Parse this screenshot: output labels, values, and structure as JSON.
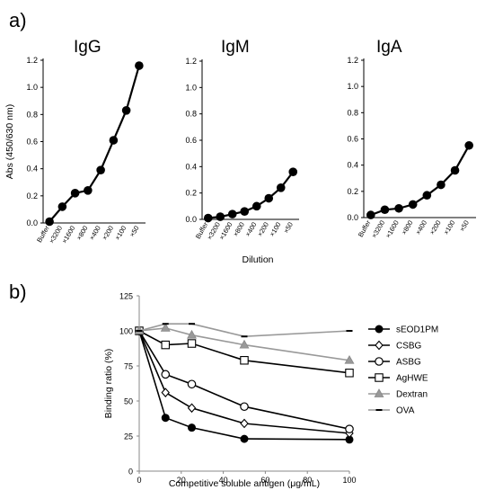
{
  "panel_labels": {
    "a": "a)",
    "b": "b)"
  },
  "chart_data": [
    {
      "type": "line",
      "title": "IgG",
      "categories": [
        "Buffer",
        "×3200",
        "×1600",
        "×800",
        "×400",
        "×200",
        "×100",
        "×50"
      ],
      "values": [
        0.01,
        0.12,
        0.22,
        0.24,
        0.39,
        0.61,
        0.83,
        1.16
      ],
      "ylim": [
        0,
        1.2
      ],
      "yticks": [
        "0.0",
        "0.2",
        "0.4",
        "0.6",
        "0.8",
        "1.0",
        "1.2"
      ],
      "ylabel": "Abs (450/630 nm)",
      "xlabel": ""
    },
    {
      "type": "line",
      "title": "IgM",
      "categories": [
        "Buffer",
        "×3200",
        "×1600",
        "×800",
        "×400",
        "×200",
        "×100",
        "×50"
      ],
      "values": [
        0.01,
        0.02,
        0.04,
        0.06,
        0.1,
        0.16,
        0.24,
        0.36
      ],
      "ylim": [
        0,
        1.2
      ],
      "yticks": [
        "0.0",
        "0.2",
        "0.4",
        "0.6",
        "0.8",
        "1.0",
        "1.2"
      ],
      "ylabel": "",
      "xlabel": "Dilution"
    },
    {
      "type": "line",
      "title": "IgA",
      "categories": [
        "Buffer",
        "×3200",
        "×1600",
        "×800",
        "×400",
        "×200",
        "×100",
        "×50"
      ],
      "values": [
        0.02,
        0.06,
        0.07,
        0.1,
        0.17,
        0.25,
        0.36,
        0.55
      ],
      "ylim": [
        0,
        1.2
      ],
      "yticks": [
        "0.0",
        "0.2",
        "0.4",
        "0.6",
        "0.8",
        "1.0",
        "1.2"
      ],
      "ylabel": "",
      "xlabel": ""
    },
    {
      "type": "line",
      "title": "",
      "x": [
        0,
        12.5,
        25,
        50,
        100
      ],
      "xlim": [
        0,
        100
      ],
      "ylim": [
        0,
        125
      ],
      "xticks": [
        0,
        20,
        40,
        60,
        80,
        100
      ],
      "yticks": [
        0,
        25,
        50,
        75,
        100,
        125
      ],
      "xlabel": "Competitive soluble antigen (μg/mL)",
      "ylabel": "Binding ratio (%)",
      "legend_position": "right",
      "series": [
        {
          "name": "sEOD1PM",
          "marker": "filled-circle",
          "color": "#000000",
          "values": [
            100,
            38,
            31,
            23,
            22.5
          ]
        },
        {
          "name": "CSBG",
          "marker": "open-diamond",
          "color": "#000000",
          "values": [
            100,
            56,
            45,
            34,
            27
          ]
        },
        {
          "name": "ASBG",
          "marker": "open-circle",
          "color": "#000000",
          "values": [
            100,
            69,
            62,
            46,
            30
          ]
        },
        {
          "name": "AgHWE",
          "marker": "open-square",
          "color": "#000000",
          "values": [
            100,
            90,
            91,
            79,
            70
          ]
        },
        {
          "name": "Dextran",
          "marker": "gray-triangle",
          "color": "#999999",
          "values": [
            100,
            102,
            97,
            90,
            79
          ]
        },
        {
          "name": "OVA",
          "marker": "dash",
          "color": "#999999",
          "values": [
            100,
            105,
            105,
            96,
            100
          ]
        }
      ]
    }
  ]
}
